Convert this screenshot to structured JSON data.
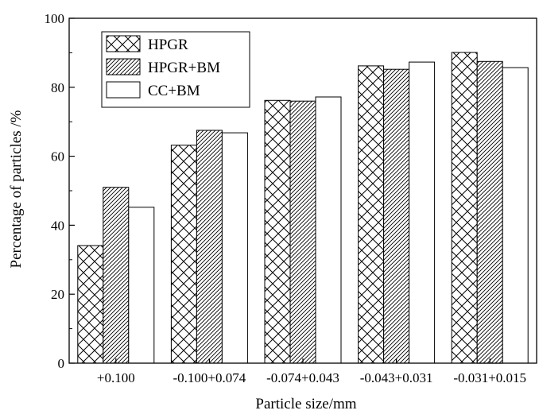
{
  "chart_data": {
    "type": "bar",
    "title": "",
    "xlabel": "Particle size/mm",
    "ylabel": "Percentage of particles /%",
    "ylim": [
      0,
      100
    ],
    "yticks": [
      0,
      20,
      40,
      60,
      80,
      100
    ],
    "categories": [
      "+0.100",
      "-0.100+0.074",
      "-0.074+0.043",
      "-0.043+0.031",
      "-0.031+0.015"
    ],
    "series": [
      {
        "name": "HPGR",
        "pattern": "crosshatch",
        "values": [
          34.1,
          63.2,
          76.2,
          86.2,
          90.1
        ]
      },
      {
        "name": "HPGR+BM",
        "pattern": "diagonal",
        "values": [
          51.0,
          67.5,
          76.0,
          85.2,
          87.5
        ]
      },
      {
        "name": "CC+BM",
        "pattern": "empty",
        "values": [
          45.2,
          66.8,
          77.2,
          87.3,
          85.7
        ]
      }
    ],
    "legend_position": "top-left",
    "grid": false,
    "bar_stroke_color": "#000000",
    "bar_fill_color": "#ffffff"
  }
}
